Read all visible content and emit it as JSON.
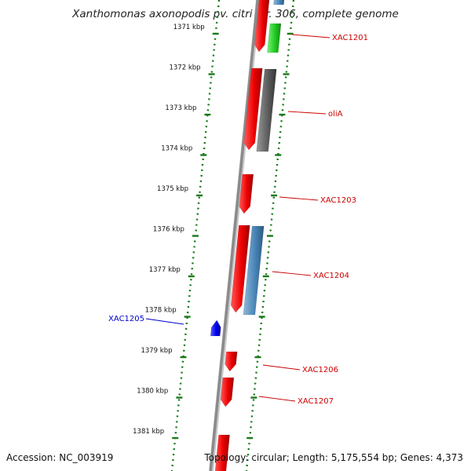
{
  "title": "Xanthomonas axonopodis pv. citri str. 306, complete genome",
  "footer": {
    "accession": "Accession: NC_003919",
    "topology": "Topology: circular; Length: 5,175,554 bp; Genes: 4,373"
  },
  "ruler_ticks": [
    {
      "label": "1371 kbp"
    },
    {
      "label": "1372 kbp"
    },
    {
      "label": "1373 kbp"
    },
    {
      "label": "1374 kbp"
    },
    {
      "label": "1375 kbp"
    },
    {
      "label": "1376 kbp"
    },
    {
      "label": "1377 kbp"
    },
    {
      "label": "1378 kbp"
    },
    {
      "label": "1379 kbp"
    },
    {
      "label": "1380 kbp"
    },
    {
      "label": "1381 kbp"
    }
  ],
  "gene_labels": [
    {
      "text": "XAC1201",
      "color": "#cc0000"
    },
    {
      "text": "oliA",
      "color": "#cc0000"
    },
    {
      "text": "XAC1203",
      "color": "#cc0000"
    },
    {
      "text": "XAC1204",
      "color": "#cc0000"
    },
    {
      "text": "XAC1205",
      "color": "#0000cc"
    },
    {
      "text": "XAC1206",
      "color": "#cc0000"
    },
    {
      "text": "XAC1207",
      "color": "#cc0000"
    }
  ],
  "colors": {
    "backbone": "#8a8a8a",
    "ruler_dots": "#1a7a1a",
    "forward_gene": "#ee0000",
    "reverse_gene": "#0000ee",
    "steel_feature": "#4a86b8",
    "grey_feature": "#5f5f5f",
    "green_feature": "#22cc22"
  }
}
